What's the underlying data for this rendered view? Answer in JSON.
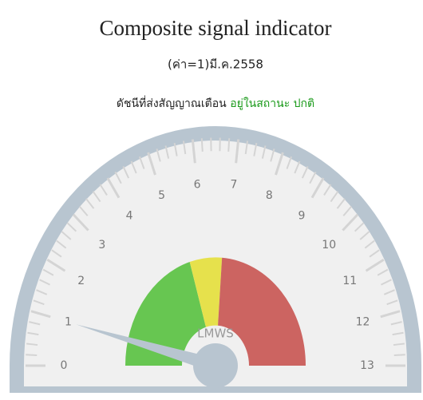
{
  "chart_data": {
    "type": "gauge",
    "title": "Composite signal indicator",
    "subtitle": "(ค่า=1)มี.ค.2558",
    "status_label": "ดัชนีที่ส่งสัญญาณเตือน",
    "status": "อยู่ในสถานะ ปกติ",
    "status_color": "#1a9a1a",
    "center_label": "LMWS",
    "value": 1,
    "ylim": [
      0,
      13
    ],
    "ticks": [
      0,
      1,
      2,
      3,
      4,
      5,
      6,
      7,
      8,
      9,
      10,
      11,
      12,
      13
    ],
    "minor_ticks_per_interval": 5,
    "bands": [
      {
        "from": 0,
        "to": 5.3,
        "color": "#67c651"
      },
      {
        "from": 5.3,
        "to": 6.8,
        "color": "#e6e14c"
      },
      {
        "from": 6.8,
        "to": 13,
        "color": "#cc6461"
      }
    ]
  }
}
